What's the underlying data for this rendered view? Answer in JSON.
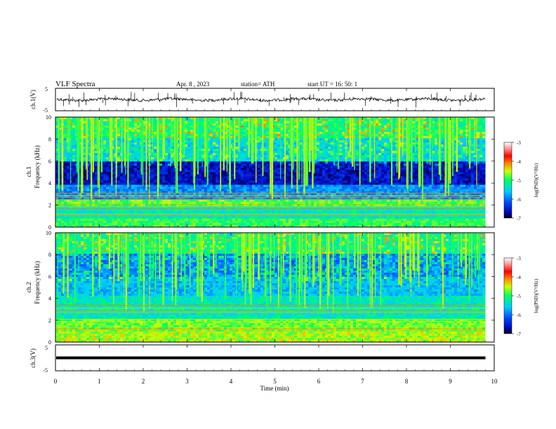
{
  "header": {
    "title": "VLF  Spectra",
    "date": "Apr. 8  , 2023",
    "station": "station= ATH",
    "start": "start  UT  =    16: 50: 1"
  },
  "chart_data": [
    {
      "type": "line",
      "ylabel": "ch.1(V)",
      "ylim": [
        -5,
        5
      ],
      "y_ticks": [
        "5",
        "-5"
      ],
      "xlim": [
        0,
        10
      ],
      "baseline": 0,
      "data_end_min": 9.8
    },
    {
      "type": "heatmap",
      "ylabel": "ch.1\nFrequency (kHz)",
      "ylabel_lines": [
        "ch.1",
        "Frequency (kHz)"
      ],
      "ylim": [
        0,
        10
      ],
      "y_ticks": [
        "0",
        "2",
        "4",
        "6",
        "8",
        "10"
      ],
      "xlim": [
        0,
        10
      ],
      "data_end_min": 9.8,
      "colorbar": {
        "label": "log(PSD)(V²/Hz)",
        "range": [
          -7,
          -3
        ],
        "ticks": [
          "-3",
          "-4",
          "-5",
          "-6",
          "-7"
        ]
      }
    },
    {
      "type": "heatmap",
      "ylabel": "ch.2\nFrequency (kHz)",
      "ylabel_lines": [
        "ch.2",
        "Frequency (kHz)"
      ],
      "ylim": [
        0,
        10
      ],
      "y_ticks": [
        "0",
        "2",
        "4",
        "6",
        "8",
        "10"
      ],
      "xlim": [
        0,
        10
      ],
      "data_end_min": 9.8,
      "colorbar": {
        "label": "log(PSD)(V²/Hz)",
        "range": [
          -7,
          -3
        ],
        "ticks": [
          "-3",
          "-4",
          "-5",
          "-6",
          "-7"
        ]
      }
    },
    {
      "type": "line",
      "ylabel": "ch.3(V)",
      "ylim": [
        -5,
        5
      ],
      "y_ticks": [
        "5",
        "-5"
      ],
      "xlim": [
        0,
        10
      ],
      "baseline": 0,
      "data_end_min": 9.8
    }
  ],
  "xaxis": {
    "label": "Time  (min)",
    "ticks": [
      "0",
      "1",
      "2",
      "3",
      "4",
      "5",
      "6",
      "7",
      "8",
      "9",
      "10"
    ]
  }
}
